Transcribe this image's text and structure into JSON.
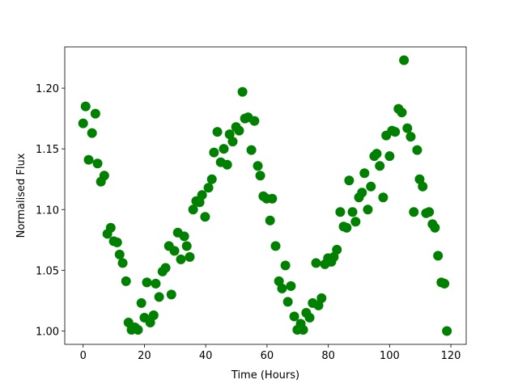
{
  "chart_data": {
    "type": "scatter",
    "xlabel": "Time (Hours)",
    "ylabel": "Normalised Flux",
    "color": "#008000",
    "x": [
      0,
      0.8,
      1.8,
      2.9,
      4,
      4.7,
      5.8,
      6.9,
      7.9,
      9,
      10,
      11.1,
      11.9,
      12.9,
      14,
      14.8,
      15.8,
      16.9,
      17.9,
      19,
      20,
      20.8,
      21.9,
      23,
      23.7,
      24.8,
      25.9,
      26.9,
      28,
      28.8,
      29.8,
      30.9,
      31.9,
      33,
      33.8,
      34.8,
      35.9,
      36.9,
      38,
      38.8,
      39.8,
      40.9,
      42,
      42.7,
      43.8,
      44.9,
      45.9,
      47,
      47.8,
      48.8,
      49.9,
      50.9,
      52,
      52.8,
      53.8,
      54.9,
      55.9,
      57,
      57.8,
      58.8,
      59.9,
      61,
      61.7,
      62.8,
      63.9,
      64.9,
      66,
      66.8,
      67.8,
      68.9,
      69.9,
      71,
      71.8,
      72.8,
      73.9,
      74.9,
      76,
      76.8,
      77.8,
      78.9,
      79.9,
      81,
      81.8,
      82.8,
      83.9,
      85,
      86,
      86.8,
      87.9,
      88.9,
      90,
      91,
      91.8,
      92.9,
      93.9,
      95,
      95.8,
      96.8,
      97.9,
      98.9,
      100,
      100.8,
      101.8,
      102.9,
      104,
      104.7,
      105.8,
      106.9,
      107.9,
      109,
      109.8,
      110.8,
      111.9,
      112.9,
      114,
      114.8,
      115.8,
      116.9,
      117.9,
      118.7
    ],
    "values": [
      1.171,
      1.185,
      1.141,
      1.163,
      1.179,
      1.138,
      1.123,
      1.128,
      1.08,
      1.085,
      1.074,
      1.073,
      1.063,
      1.056,
      1.041,
      1.007,
      1.001,
      1.003,
      1.001,
      1.023,
      1.011,
      1.04,
      1.007,
      1.013,
      1.039,
      1.028,
      1.049,
      1.052,
      1.07,
      1.03,
      1.066,
      1.081,
      1.059,
      1.078,
      1.07,
      1.061,
      1.1,
      1.107,
      1.106,
      1.112,
      1.094,
      1.118,
      1.125,
      1.147,
      1.164,
      1.139,
      1.15,
      1.137,
      1.162,
      1.156,
      1.168,
      1.165,
      1.197,
      1.175,
      1.176,
      1.149,
      1.173,
      1.136,
      1.128,
      1.111,
      1.109,
      1.091,
      1.109,
      1.07,
      1.041,
      1.035,
      1.054,
      1.024,
      1.037,
      1.012,
      1.001,
      1.006,
      1.001,
      1.015,
      1.011,
      1.023,
      1.056,
      1.021,
      1.027,
      1.055,
      1.06,
      1.057,
      1.061,
      1.067,
      1.098,
      1.086,
      1.085,
      1.124,
      1.098,
      1.09,
      1.11,
      1.114,
      1.13,
      1.1,
      1.119,
      1.144,
      1.146,
      1.136,
      1.11,
      1.161,
      1.144,
      1.165,
      1.164,
      1.183,
      1.18,
      1.223,
      1.167,
      1.16,
      1.098,
      1.149,
      1.125,
      1.119,
      1.097,
      1.098,
      1.088,
      1.085,
      1.062,
      1.04,
      1.039,
      1.0
    ],
    "xlim": [
      -6,
      125
    ],
    "xticks": [
      0,
      20,
      40,
      60,
      80,
      100,
      120
    ],
    "ylim": [
      0.989,
      1.234
    ],
    "yticks": [
      {
        "value": 1.0,
        "label": "1.00"
      },
      1.05,
      {
        "value": 1.1,
        "label": "1.10"
      },
      1.15,
      {
        "value": 1.2,
        "label": "1.20"
      }
    ],
    "grid": false
  }
}
